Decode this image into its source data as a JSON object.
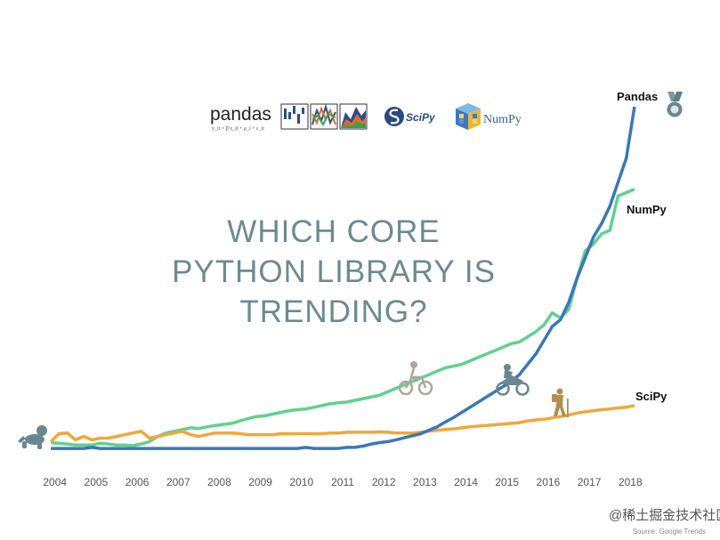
{
  "headline": {
    "line1": "WHICH CORE",
    "line2": "PYTHON LIBRARY IS",
    "line3": "TRENDING?"
  },
  "logos": {
    "pandas": "pandas",
    "pandas_formula": "y_it = β′x_it + μ_i + ε_it",
    "scipy": "SciPy",
    "numpy": "NumPy"
  },
  "icons": {
    "start": "baby-crawling-icon",
    "numpy_marker": "cyclist-icon",
    "pandas_marker": "motorcyclist-icon",
    "scipy_marker": "hiker-icon",
    "end": "medal-icon"
  },
  "colors": {
    "pandas": "#3a78b7",
    "numpy": "#5fd28d",
    "scipy": "#f0a83a",
    "headline": "#6b8b91"
  },
  "watermark": "@稀土掘金技术社区",
  "source": "Source: Google Trends",
  "chart_data": {
    "type": "line",
    "xlabel": "",
    "ylabel": "",
    "x": [
      2003.9,
      2004.1,
      2004.3,
      2004.5,
      2004.7,
      2004.9,
      2005.1,
      2005.3,
      2005.5,
      2005.7,
      2005.9,
      2006.1,
      2006.3,
      2006.5,
      2006.7,
      2006.9,
      2007.1,
      2007.3,
      2007.5,
      2007.7,
      2007.9,
      2008.1,
      2008.3,
      2008.5,
      2008.7,
      2008.9,
      2009.1,
      2009.3,
      2009.5,
      2009.7,
      2009.9,
      2010.1,
      2010.3,
      2010.5,
      2010.7,
      2010.9,
      2011.1,
      2011.3,
      2011.5,
      2011.7,
      2011.9,
      2012.1,
      2012.3,
      2012.5,
      2012.7,
      2012.9,
      2013.1,
      2013.3,
      2013.5,
      2013.7,
      2013.9,
      2014.1,
      2014.3,
      2014.5,
      2014.7,
      2014.9,
      2015.1,
      2015.3,
      2015.5,
      2015.7,
      2015.9,
      2016.1,
      2016.3,
      2016.5,
      2016.7,
      2016.9,
      2017.1,
      2017.3,
      2017.5,
      2017.7,
      2017.9,
      2018.1
    ],
    "xlim": [
      2003.4,
      2018.6
    ],
    "ylim": [
      0,
      100
    ],
    "x_ticks": [
      2004,
      2005,
      2006,
      2007,
      2008,
      2009,
      2010,
      2011,
      2012,
      2013,
      2014,
      2015,
      2016,
      2017,
      2018
    ],
    "grid": false,
    "series": [
      {
        "name": "Pandas",
        "values": [
          0.5,
          0.5,
          0.5,
          0.5,
          0.5,
          0.8,
          0.5,
          0.5,
          0.5,
          0.5,
          0.5,
          0.5,
          0.5,
          0.5,
          0.5,
          0.5,
          0.5,
          0.5,
          0.5,
          0.5,
          0.5,
          0.5,
          0.5,
          0.5,
          0.5,
          0.5,
          0.5,
          0.5,
          0.5,
          0.5,
          0.5,
          0.8,
          0.5,
          0.5,
          0.5,
          0.5,
          0.8,
          0.8,
          1.2,
          1.8,
          2.2,
          2.5,
          3.0,
          3.6,
          4.2,
          4.8,
          5.8,
          6.8,
          8.2,
          9.5,
          11,
          12.5,
          14,
          15.5,
          17,
          18.5,
          20,
          22,
          25,
          28,
          32,
          36,
          38,
          43,
          50,
          56,
          62,
          66,
          71,
          78,
          85,
          100
        ]
      },
      {
        "name": "NumPy",
        "values": [
          2.2,
          2.0,
          1.8,
          1.5,
          1.5,
          1.5,
          2.0,
          1.8,
          1.5,
          1.5,
          1.3,
          1.8,
          2.5,
          4.0,
          5.0,
          5.5,
          6.0,
          6.5,
          6.3,
          6.8,
          7.2,
          7.5,
          7.8,
          8.5,
          9.2,
          9.8,
          10,
          10.5,
          11,
          11.5,
          11.8,
          12,
          12.5,
          13,
          13.5,
          13.8,
          14,
          14.5,
          15,
          15.5,
          16,
          17,
          18,
          19,
          20,
          21,
          22,
          23,
          24,
          24.5,
          25,
          26,
          27,
          28,
          29,
          30,
          31,
          31.5,
          33,
          34.5,
          36.5,
          40,
          38.5,
          41,
          50,
          58,
          60,
          63,
          64,
          74,
          75,
          76
        ]
      },
      {
        "name": "SciPy",
        "values": [
          2.5,
          4.8,
          5.0,
          3.0,
          4.0,
          3.0,
          3.5,
          3.5,
          4.0,
          4.5,
          5.0,
          5.5,
          3.5,
          4.0,
          4.5,
          5.0,
          5.5,
          4.5,
          4.0,
          4.5,
          5.0,
          5.0,
          5.0,
          4.8,
          4.5,
          4.5,
          4.5,
          4.5,
          4.8,
          4.8,
          4.8,
          4.8,
          4.8,
          4.8,
          5.0,
          5.0,
          5.2,
          5.2,
          5.2,
          5.2,
          5.3,
          5.2,
          5.0,
          5.0,
          5.0,
          5.2,
          5.5,
          5.8,
          6.0,
          6.2,
          6.5,
          6.8,
          7.0,
          7.2,
          7.4,
          7.6,
          7.8,
          8.0,
          8.5,
          8.8,
          9.0,
          9.4,
          9.8,
          10.2,
          10.8,
          11.2,
          11.5,
          11.8,
          12.0,
          12.3,
          12.5,
          13.0
        ]
      }
    ]
  }
}
